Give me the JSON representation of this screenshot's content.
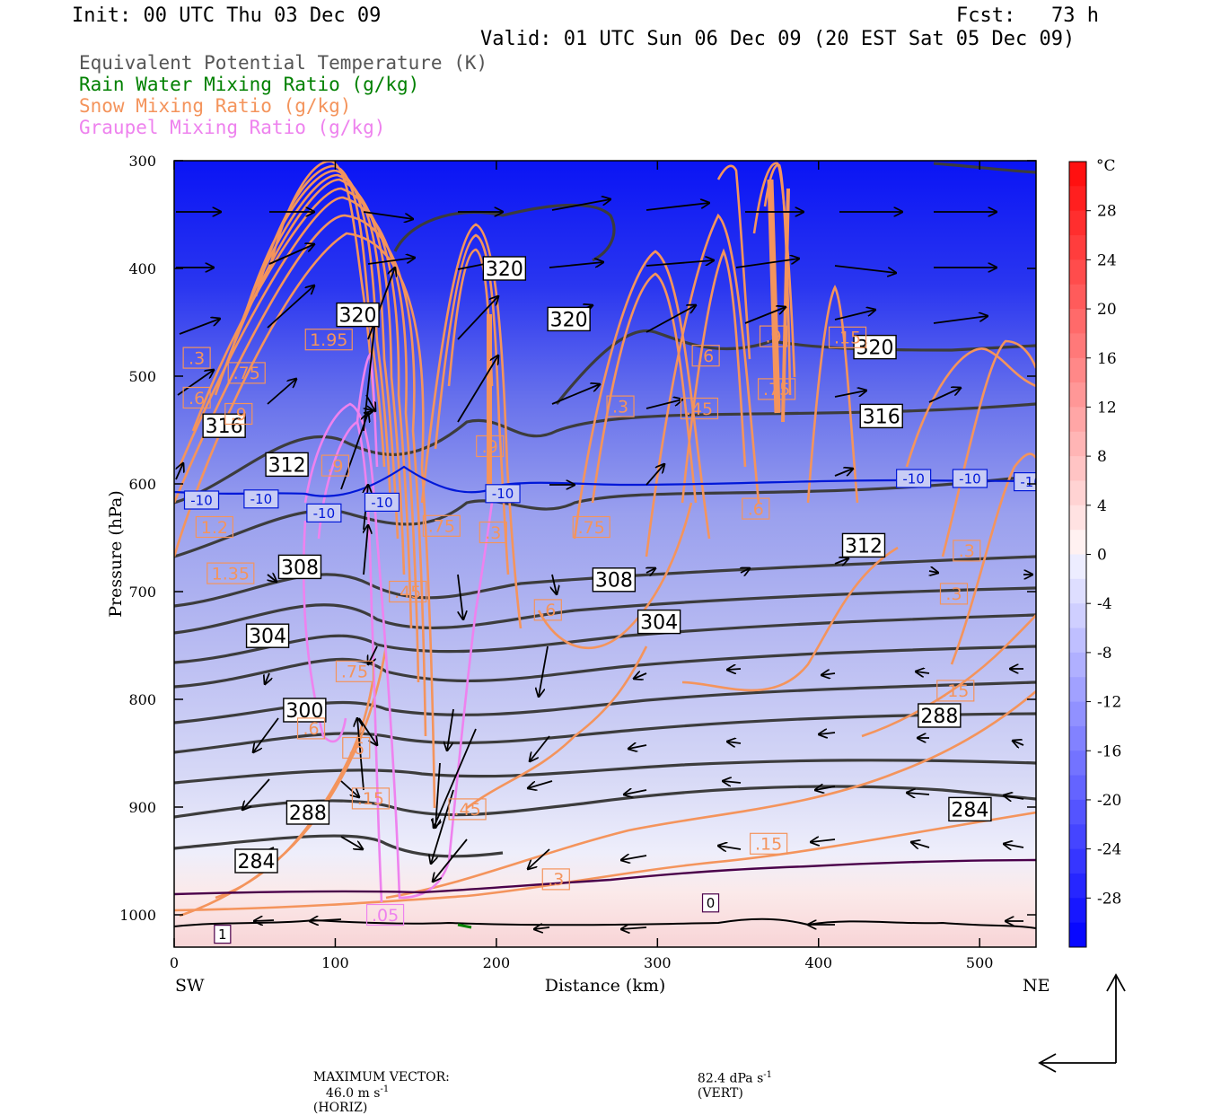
{
  "header": {
    "init": "Init: 00 UTC Thu 03 Dec 09",
    "fcst": "Fcst:   73 h",
    "valid": "Valid: 01 UTC Sun 06 Dec 09 (20 EST Sat 05 Dec 09)"
  },
  "legend": [
    {
      "text": "Equivalent Potential Temperature (K)",
      "color": "#555555"
    },
    {
      "text": "Rain Water Mixing Ratio (g/kg)",
      "color": "#008000"
    },
    {
      "text": "Snow Mixing Ratio (g/kg)",
      "color": "#f4945c"
    },
    {
      "text": "Graupel Mixing Ratio (g/kg)",
      "color": "#ee82ee"
    }
  ],
  "footer": {
    "max_label": "MAXIMUM VECTOR:",
    "horiz_value": "46.0 m s",
    "horiz_unit": "(HORIZ)",
    "vert_value": "82.4 dPa s",
    "vert_unit": "(VERT)",
    "exp": "-1"
  },
  "chart_data": {
    "type": "cross-section",
    "xlabel": "Distance (km)",
    "ylabel": "Pressure (hPa)",
    "xlim": [
      0,
      535
    ],
    "ylim": [
      1030,
      300
    ],
    "x_ticks": [
      0,
      100,
      200,
      300,
      400,
      500
    ],
    "y_ticks": [
      300,
      400,
      500,
      600,
      700,
      800,
      900,
      1000
    ],
    "x_end_labels": {
      "left": "SW",
      "right": "NE"
    },
    "colorbar": {
      "unit": "°C",
      "range": [
        -32,
        32
      ],
      "labels": [
        28,
        24,
        20,
        16,
        12,
        8,
        4,
        0,
        -4,
        -8,
        -12,
        -16,
        -20,
        -24,
        -28
      ]
    },
    "theta_e_labels": [
      {
        "text": "320",
        "x": 114,
        "p": 443
      },
      {
        "text": "320",
        "x": 205,
        "p": 400
      },
      {
        "text": "320",
        "x": 245,
        "p": 447
      },
      {
        "text": "320",
        "x": 435,
        "p": 473
      },
      {
        "text": "316",
        "x": 31,
        "p": 546
      },
      {
        "text": "316",
        "x": 439,
        "p": 537
      },
      {
        "text": "312",
        "x": 70,
        "p": 582
      },
      {
        "text": "312",
        "x": 428,
        "p": 657
      },
      {
        "text": "308",
        "x": 78,
        "p": 677
      },
      {
        "text": "308",
        "x": 273,
        "p": 689
      },
      {
        "text": "304",
        "x": 58,
        "p": 741
      },
      {
        "text": "304",
        "x": 301,
        "p": 728
      },
      {
        "text": "300",
        "x": 81,
        "p": 810
      },
      {
        "text": "288",
        "x": 475,
        "p": 815
      },
      {
        "text": "288",
        "x": 83,
        "p": 905
      },
      {
        "text": "284",
        "x": 51,
        "p": 950
      },
      {
        "text": "284",
        "x": 494,
        "p": 902
      }
    ],
    "snow_labels": [
      {
        "text": ".3",
        "x": 14,
        "p": 483
      },
      {
        "text": ".6",
        "x": 14,
        "p": 520
      },
      {
        "text": ".75",
        "x": 45,
        "p": 497
      },
      {
        "text": "1.95",
        "x": 96,
        "p": 466
      },
      {
        "text": ".9",
        "x": 40,
        "p": 535
      },
      {
        "text": "1.2",
        "x": 25,
        "p": 640
      },
      {
        "text": "1.35",
        "x": 35,
        "p": 683
      },
      {
        "text": ".6",
        "x": 330,
        "p": 481
      },
      {
        "text": ".9",
        "x": 372,
        "p": 463
      },
      {
        "text": ".15",
        "x": 418,
        "p": 464
      },
      {
        "text": ".75",
        "x": 374,
        "p": 512
      },
      {
        "text": ".3",
        "x": 277,
        "p": 528
      },
      {
        "text": ".45",
        "x": 326,
        "p": 530
      },
      {
        "text": ".9",
        "x": 196,
        "p": 565
      },
      {
        "text": ".75",
        "x": 166,
        "p": 639
      },
      {
        "text": ".3",
        "x": 198,
        "p": 645
      },
      {
        "text": ".75",
        "x": 259,
        "p": 640
      },
      {
        "text": ".6",
        "x": 361,
        "p": 623
      },
      {
        "text": ".45",
        "x": 145,
        "p": 700
      },
      {
        "text": ".6",
        "x": 232,
        "p": 717
      },
      {
        "text": ".3",
        "x": 492,
        "p": 662
      },
      {
        "text": ".3",
        "x": 484,
        "p": 702
      },
      {
        "text": ".15",
        "x": 485,
        "p": 792
      },
      {
        "text": ".15",
        "x": 369,
        "p": 934
      },
      {
        "text": ".3",
        "x": 237,
        "p": 967
      },
      {
        "text": ".45",
        "x": 182,
        "p": 902
      },
      {
        "text": ".75",
        "x": 112,
        "p": 774
      },
      {
        "text": ".6",
        "x": 113,
        "p": 845
      },
      {
        "text": ".6",
        "x": 85,
        "p": 827
      },
      {
        "text": ".15",
        "x": 122,
        "p": 892
      },
      {
        "text": ".9",
        "x": 100,
        "p": 583
      }
    ],
    "graupel_labels": [
      {
        "text": ".05",
        "x": 131,
        "p": 1000
      }
    ],
    "temp_labels": [
      {
        "text": "-10",
        "x": 17,
        "p": 615
      },
      {
        "text": "-10",
        "x": 54,
        "p": 614
      },
      {
        "text": "-10",
        "x": 93,
        "p": 627
      },
      {
        "text": "-10",
        "x": 129,
        "p": 617
      },
      {
        "text": "-10",
        "x": 204,
        "p": 609
      },
      {
        "text": "-10",
        "x": 459,
        "p": 595
      },
      {
        "text": "-10",
        "x": 494,
        "p": 595
      },
      {
        "text": "-10",
        "x": 532,
        "p": 598
      },
      {
        "text": "0",
        "x": 333,
        "p": 989
      },
      {
        "text": "1",
        "x": 30,
        "p": 1018
      }
    ]
  }
}
